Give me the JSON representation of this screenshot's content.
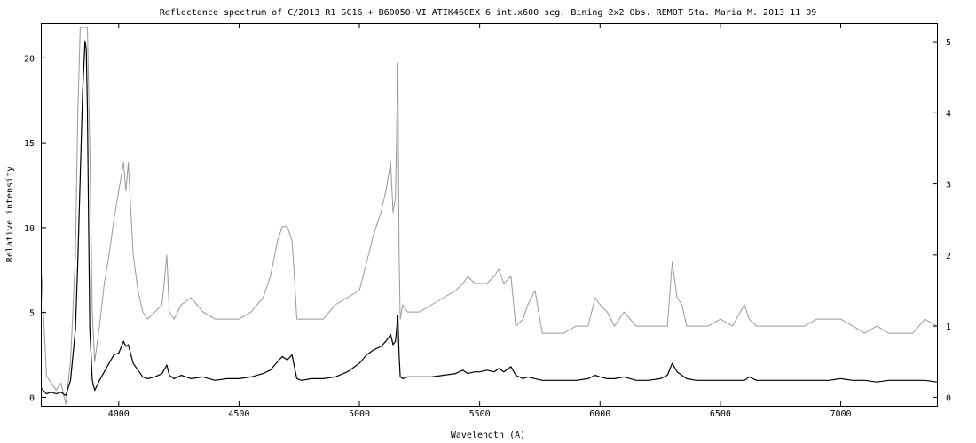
{
  "chart_data": {
    "type": "line",
    "title": "Reflectance spectrum of C/2013 R1  SC16 + B60050-VI  ATIK460EX  6 int.x600 seg. Bining 2x2  Obs. REMOT Sta. Maria  M.  2013 11 09",
    "xlabel": "Wavelength (A)",
    "ylabel": "Relative intensity",
    "xlim": [
      3680,
      7400
    ],
    "ylim": [
      -0.5,
      22
    ],
    "y2lim": [
      -0.12,
      5.25
    ],
    "x_ticks": [
      4000,
      4500,
      5000,
      5500,
      6000,
      6500,
      7000
    ],
    "y_ticks": [
      0,
      5,
      10,
      15,
      20
    ],
    "y2_ticks": [
      0,
      1,
      2,
      3,
      4,
      5
    ],
    "grid": false,
    "legend": "none",
    "series": [
      {
        "axis": "left",
        "color": "#000000",
        "x": [
          3680,
          3700,
          3720,
          3740,
          3760,
          3780,
          3800,
          3820,
          3830,
          3840,
          3850,
          3855,
          3860,
          3865,
          3870,
          3875,
          3880,
          3890,
          3900,
          3920,
          3940,
          3960,
          3980,
          4000,
          4020,
          4030,
          4040,
          4060,
          4080,
          4100,
          4120,
          4150,
          4180,
          4200,
          4210,
          4230,
          4260,
          4300,
          4350,
          4400,
          4450,
          4500,
          4550,
          4600,
          4630,
          4660,
          4680,
          4700,
          4720,
          4730,
          4740,
          4760,
          4800,
          4850,
          4900,
          4950,
          5000,
          5030,
          5060,
          5090,
          5110,
          5130,
          5140,
          5150,
          5160,
          5165,
          5170,
          5180,
          5200,
          5250,
          5300,
          5350,
          5400,
          5430,
          5450,
          5480,
          5500,
          5530,
          5560,
          5580,
          5600,
          5630,
          5650,
          5680,
          5700,
          5730,
          5760,
          5800,
          5850,
          5900,
          5950,
          5980,
          6000,
          6030,
          6060,
          6100,
          6150,
          6200,
          6250,
          6280,
          6300,
          6320,
          6340,
          6360,
          6400,
          6450,
          6500,
          6550,
          6600,
          6620,
          6650,
          6700,
          6750,
          6800,
          6850,
          6900,
          6950,
          7000,
          7050,
          7100,
          7150,
          7200,
          7250,
          7300,
          7350,
          7400
        ],
        "y": [
          0.5,
          0.2,
          0.3,
          0.2,
          0.3,
          0.1,
          1.0,
          4.0,
          8.0,
          13.0,
          18.0,
          19.5,
          21.0,
          20.5,
          17.0,
          10.0,
          4.0,
          1.0,
          0.4,
          1.0,
          1.5,
          2.0,
          2.5,
          2.6,
          3.3,
          3.0,
          3.1,
          2.0,
          1.6,
          1.2,
          1.1,
          1.2,
          1.4,
          1.9,
          1.3,
          1.1,
          1.3,
          1.1,
          1.2,
          1.0,
          1.1,
          1.1,
          1.2,
          1.4,
          1.6,
          2.1,
          2.4,
          2.2,
          2.5,
          1.8,
          1.1,
          1.0,
          1.1,
          1.1,
          1.2,
          1.5,
          2.0,
          2.5,
          2.8,
          3.0,
          3.3,
          3.7,
          3.1,
          3.3,
          4.8,
          2.5,
          1.2,
          1.1,
          1.2,
          1.2,
          1.2,
          1.3,
          1.4,
          1.6,
          1.4,
          1.5,
          1.5,
          1.6,
          1.5,
          1.7,
          1.5,
          1.8,
          1.3,
          1.1,
          1.2,
          1.1,
          1.0,
          1.0,
          1.0,
          1.0,
          1.1,
          1.3,
          1.2,
          1.1,
          1.1,
          1.2,
          1.0,
          1.0,
          1.1,
          1.3,
          2.0,
          1.5,
          1.3,
          1.1,
          1.0,
          1.0,
          1.0,
          1.0,
          1.0,
          1.2,
          1.0,
          1.0,
          1.0,
          1.0,
          1.0,
          1.0,
          1.0,
          1.1,
          1.0,
          1.0,
          0.9,
          1.0,
          1.0,
          1.0,
          1.0,
          0.9
        ]
      },
      {
        "axis": "right",
        "color": "#999999",
        "x": [
          3680,
          3700,
          3720,
          3740,
          3760,
          3780,
          3800,
          3820,
          3830,
          3840,
          3850,
          3860,
          3870,
          3880,
          3890,
          3900,
          3920,
          3940,
          3960,
          3980,
          4000,
          4020,
          4030,
          4040,
          4060,
          4080,
          4100,
          4120,
          4150,
          4180,
          4200,
          4210,
          4230,
          4260,
          4300,
          4350,
          4400,
          4450,
          4500,
          4550,
          4600,
          4630,
          4660,
          4680,
          4700,
          4720,
          4730,
          4740,
          4760,
          4800,
          4850,
          4900,
          4950,
          5000,
          5030,
          5060,
          5090,
          5110,
          5130,
          5140,
          5150,
          5160,
          5165,
          5170,
          5180,
          5200,
          5250,
          5300,
          5350,
          5400,
          5430,
          5450,
          5480,
          5500,
          5530,
          5560,
          5580,
          5600,
          5630,
          5650,
          5680,
          5700,
          5730,
          5760,
          5800,
          5850,
          5900,
          5950,
          5980,
          6000,
          6030,
          6060,
          6100,
          6150,
          6200,
          6250,
          6280,
          6300,
          6320,
          6340,
          6360,
          6400,
          6450,
          6500,
          6550,
          6600,
          6620,
          6650,
          6700,
          6750,
          6800,
          6850,
          6900,
          6950,
          7000,
          7050,
          7100,
          7150,
          7200,
          7250,
          7300,
          7350,
          7400
        ],
        "y": [
          1.7,
          0.3,
          0.2,
          0.1,
          0.2,
          -0.1,
          0.5,
          2.0,
          4.0,
          5.2,
          5.2,
          5.2,
          5.2,
          3.5,
          1.2,
          0.5,
          1.0,
          1.6,
          2.0,
          2.5,
          2.9,
          3.3,
          2.9,
          3.3,
          2.0,
          1.5,
          1.2,
          1.1,
          1.2,
          1.3,
          2.0,
          1.2,
          1.1,
          1.3,
          1.4,
          1.2,
          1.1,
          1.1,
          1.1,
          1.2,
          1.4,
          1.7,
          2.2,
          2.4,
          2.4,
          2.2,
          1.7,
          1.1,
          1.1,
          1.1,
          1.1,
          1.3,
          1.4,
          1.5,
          1.9,
          2.3,
          2.6,
          2.9,
          3.3,
          2.6,
          2.8,
          4.7,
          2.0,
          1.1,
          1.3,
          1.2,
          1.2,
          1.3,
          1.4,
          1.5,
          1.6,
          1.7,
          1.6,
          1.6,
          1.6,
          1.7,
          1.8,
          1.6,
          1.7,
          1.0,
          1.1,
          1.3,
          1.5,
          0.9,
          0.9,
          0.9,
          1.0,
          1.0,
          1.4,
          1.3,
          1.2,
          1.0,
          1.2,
          1.0,
          1.0,
          1.0,
          1.0,
          1.9,
          1.4,
          1.3,
          1.0,
          1.0,
          1.0,
          1.1,
          1.0,
          1.3,
          1.1,
          1.0,
          1.0,
          1.0,
          1.0,
          1.0,
          1.1,
          1.1,
          1.1,
          1.0,
          0.9,
          1.0,
          0.9,
          0.9,
          0.9,
          1.1,
          1.0
        ]
      }
    ]
  }
}
